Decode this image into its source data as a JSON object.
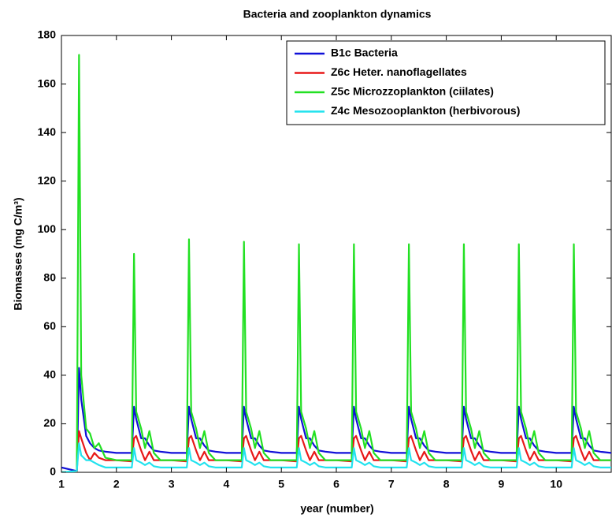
{
  "chart_data": {
    "type": "line",
    "title": "Bacteria and zooplankton dynamics",
    "x_label": "year (number)",
    "y_label": "Biomasses (mg C/m³)",
    "xlim": [
      1,
      11
    ],
    "ylim": [
      0,
      180
    ],
    "xticks": [
      1,
      2,
      3,
      4,
      5,
      6,
      7,
      8,
      9,
      10
    ],
    "yticks": [
      0,
      20,
      40,
      60,
      80,
      100,
      120,
      140,
      160,
      180
    ],
    "grid": false,
    "legend": "upper right",
    "x": [
      1,
      1.28,
      1.32,
      1.36,
      1.45,
      1.52,
      1.6,
      1.68,
      1.8,
      2,
      2.28,
      2.32,
      2.36,
      2.45,
      2.52,
      2.6,
      2.68,
      2.8,
      3,
      3.28,
      3.32,
      3.36,
      3.45,
      3.52,
      3.6,
      3.68,
      3.8,
      4,
      4.28,
      4.32,
      4.36,
      4.45,
      4.52,
      4.6,
      4.68,
      4.8,
      5,
      5.28,
      5.32,
      5.36,
      5.45,
      5.52,
      5.6,
      5.68,
      5.8,
      6,
      6.28,
      6.32,
      6.36,
      6.45,
      6.52,
      6.6,
      6.68,
      6.8,
      7,
      7.28,
      7.32,
      7.36,
      7.45,
      7.52,
      7.6,
      7.68,
      7.8,
      8,
      8.28,
      8.32,
      8.36,
      8.45,
      8.52,
      8.6,
      8.68,
      8.8,
      9,
      9.28,
      9.32,
      9.36,
      9.45,
      9.52,
      9.6,
      9.68,
      9.8,
      10,
      10.28,
      10.32,
      10.36,
      10.45,
      10.52,
      10.6,
      10.68,
      10.8,
      11
    ],
    "series": [
      {
        "name": "B1c Bacteria",
        "color": "#1010d8",
        "values": [
          2,
          0.5,
          43,
          30,
          15,
          12,
          10,
          9,
          8.5,
          8,
          8,
          27,
          22,
          14,
          14,
          11,
          9,
          8.5,
          8,
          8,
          27,
          22,
          14,
          14,
          11,
          9,
          8.5,
          8,
          8,
          27,
          22,
          14,
          14,
          11,
          9,
          8.5,
          8,
          8,
          27,
          22,
          14,
          14,
          11,
          9,
          8.5,
          8,
          8,
          27,
          22,
          14,
          14,
          11,
          9,
          8.5,
          8,
          8,
          27,
          22,
          14,
          14,
          11,
          9,
          8.5,
          8,
          8,
          27,
          22,
          14,
          14,
          11,
          9,
          8.5,
          8,
          8,
          27,
          22,
          14,
          14,
          11,
          9,
          8.5,
          8,
          8,
          27,
          22,
          14,
          14,
          11,
          9,
          8.5,
          8
        ]
      },
      {
        "name": "Z6c Heter. nanoflagellates",
        "color": "#e81818",
        "values": [
          0,
          0.2,
          17,
          14,
          8,
          5,
          8,
          6,
          5,
          5,
          4.5,
          14,
          15,
          9,
          5,
          8.5,
          5,
          5,
          5,
          4.5,
          14,
          15,
          9,
          5,
          8.5,
          5,
          5,
          5,
          4.5,
          14,
          15,
          9,
          5,
          8.5,
          5,
          5,
          5,
          4.5,
          14,
          15,
          9,
          5,
          8.5,
          5,
          5,
          5,
          4.5,
          14,
          15,
          9,
          5,
          8.5,
          5,
          5,
          5,
          4.5,
          14,
          15,
          9,
          5,
          8.5,
          5,
          5,
          5,
          4.5,
          14,
          15,
          9,
          5,
          8.5,
          5,
          5,
          5,
          4.5,
          14,
          15,
          9,
          5,
          8.5,
          5,
          5,
          5,
          4.5,
          14,
          15,
          9,
          5,
          8.5,
          5,
          5,
          5
        ]
      },
      {
        "name": "Z5c Microzzoplankton (ciilates)",
        "color": "#22e022",
        "values": [
          0,
          0.5,
          172,
          40,
          18,
          16,
          10,
          12,
          6,
          5,
          5,
          90,
          25,
          18,
          10,
          17,
          8,
          5,
          5,
          5,
          96,
          25,
          18,
          10,
          17,
          8,
          5,
          5,
          5,
          95,
          25,
          18,
          10,
          17,
          8,
          5,
          5,
          5,
          94,
          25,
          18,
          10,
          17,
          8,
          5,
          5,
          5,
          94,
          25,
          18,
          10,
          17,
          8,
          5,
          5,
          5,
          94,
          25,
          18,
          10,
          17,
          8,
          5,
          5,
          5,
          94,
          25,
          18,
          10,
          17,
          8,
          5,
          5,
          5,
          94,
          25,
          18,
          10,
          17,
          8,
          5,
          5,
          5,
          94,
          25,
          18,
          10,
          17,
          8,
          5,
          5
        ]
      },
      {
        "name": "Z4c Mesozooplankton (herbivorous)",
        "color": "#22e2ee",
        "values": [
          0,
          0.5,
          12,
          7,
          5,
          5,
          4,
          3,
          2,
          2,
          2,
          10,
          5,
          4,
          3,
          4,
          2.5,
          2,
          2,
          2,
          10,
          5,
          4,
          3,
          4,
          2.5,
          2,
          2,
          2,
          10,
          5,
          4,
          3,
          4,
          2.5,
          2,
          2,
          2,
          10,
          5,
          4,
          3,
          4,
          2.5,
          2,
          2,
          2,
          10,
          5,
          4,
          3,
          4,
          2.5,
          2,
          2,
          2,
          10,
          5,
          4,
          3,
          4,
          2.5,
          2,
          2,
          2,
          10,
          5,
          4,
          3,
          4,
          2.5,
          2,
          2,
          2,
          10,
          5,
          4,
          3,
          4,
          2.5,
          2,
          2,
          2,
          10,
          5,
          4,
          3,
          4,
          2.5,
          2,
          2
        ]
      }
    ]
  }
}
